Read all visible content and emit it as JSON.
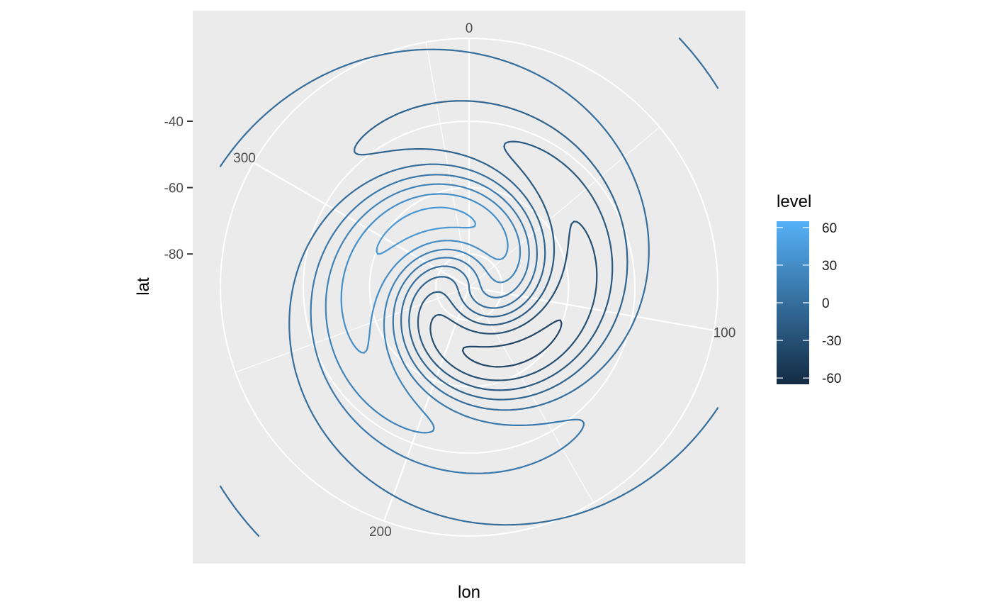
{
  "chart_data": {
    "type": "contour",
    "coord": "polar",
    "xlabel": "lon",
    "ylabel": "lat",
    "x_ticks": [
      0,
      100,
      200,
      300
    ],
    "y_ticks": [
      -40,
      -60,
      -80
    ],
    "xlim": [
      0,
      360
    ],
    "ylim": [
      -90,
      -15
    ],
    "legend": {
      "title": "level",
      "placement": "right",
      "ticks": [
        60,
        30,
        0,
        -30,
        -60
      ],
      "range": [
        -65,
        65
      ],
      "color_low": "#132B43",
      "color_high": "#56B1F7"
    },
    "field": {
      "description_level_range": [
        -65,
        65
      ],
      "contour_levels": [
        -60,
        -50,
        -40,
        -30,
        -20,
        -10,
        0,
        10,
        20,
        30,
        40,
        50,
        60
      ]
    }
  },
  "colors": {
    "panel_bg": "#ebebeb",
    "grid": "#ffffff"
  }
}
